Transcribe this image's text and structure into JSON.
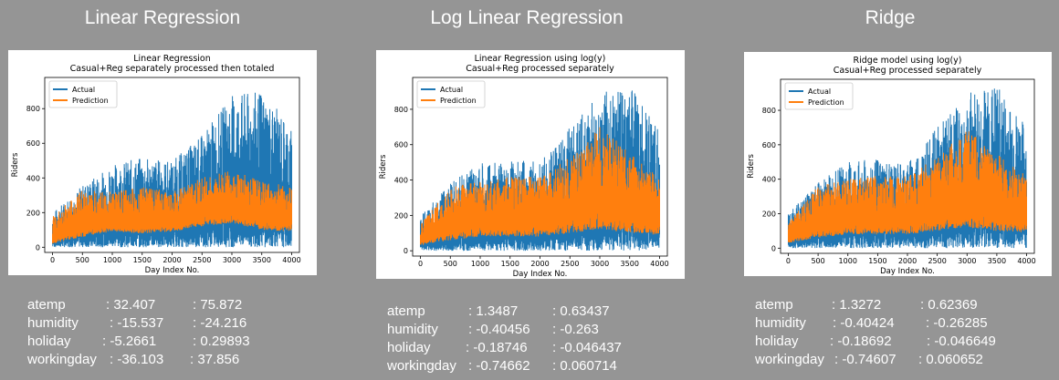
{
  "headings": [
    "Linear Regression",
    "Log Linear Regression",
    "Ridge"
  ],
  "chart_data": [
    {
      "type": "line",
      "title": "Linear Regression\nCasual+Reg separately processed then totaled",
      "xlabel": "Day Index No.",
      "ylabel": "Riders",
      "xlim": [
        -130,
        4130
      ],
      "ylim": [
        -30,
        980
      ],
      "xticks": [
        0,
        500,
        1000,
        1500,
        2000,
        2500,
        3000,
        3500,
        4000
      ],
      "yticks": [
        0,
        200,
        400,
        600,
        800
      ],
      "legend_position": "upper-left",
      "series": [
        {
          "name": "Actual",
          "color": "#1f77b4",
          "x": [
            0,
            500,
            1000,
            1500,
            2000,
            2500,
            3000,
            3500,
            4000
          ],
          "upper": [
            200,
            360,
            480,
            520,
            500,
            650,
            880,
            900,
            700
          ],
          "lower": [
            0,
            0,
            0,
            0,
            0,
            0,
            0,
            0,
            0
          ]
        },
        {
          "name": "Prediction",
          "color": "#ff7f0e",
          "x": [
            0,
            500,
            1000,
            1500,
            2000,
            2500,
            3000,
            3500,
            4000
          ],
          "upper": [
            180,
            330,
            320,
            350,
            320,
            400,
            450,
            380,
            350
          ],
          "lower": [
            20,
            60,
            90,
            80,
            90,
            120,
            140,
            100,
            90
          ]
        }
      ]
    },
    {
      "type": "line",
      "title": "Linear Regression using log(y)\nCasual+Reg processed separately",
      "xlabel": "Day Index No.",
      "ylabel": "Riders",
      "xlim": [
        -130,
        4130
      ],
      "ylim": [
        -30,
        980
      ],
      "xticks": [
        0,
        500,
        1000,
        1500,
        2000,
        2500,
        3000,
        3500,
        4000
      ],
      "yticks": [
        0,
        200,
        400,
        600,
        800
      ],
      "legend_position": "upper-left",
      "series": [
        {
          "name": "Actual",
          "color": "#1f77b4",
          "x": [
            0,
            500,
            1000,
            1500,
            2000,
            2500,
            3000,
            3500,
            4000
          ],
          "upper": [
            200,
            380,
            500,
            520,
            500,
            700,
            900,
            950,
            700
          ],
          "lower": [
            0,
            0,
            0,
            0,
            0,
            0,
            0,
            0,
            0
          ]
        },
        {
          "name": "Prediction",
          "color": "#ff7f0e",
          "x": [
            0,
            500,
            1000,
            1500,
            2000,
            2500,
            3000,
            3500,
            4000
          ],
          "upper": [
            150,
            360,
            400,
            420,
            420,
            530,
            700,
            560,
            420
          ],
          "lower": [
            30,
            60,
            80,
            80,
            80,
            100,
            120,
            100,
            90
          ]
        }
      ]
    },
    {
      "type": "line",
      "title": "Ridge model using log(y)\nCasual+Reg processed separately",
      "xlabel": "Day Index No.",
      "ylabel": "Riders",
      "xlim": [
        -130,
        4130
      ],
      "ylim": [
        -30,
        980
      ],
      "xticks": [
        0,
        500,
        1000,
        1500,
        2000,
        2500,
        3000,
        3500,
        4000
      ],
      "yticks": [
        0,
        200,
        400,
        600,
        800
      ],
      "legend_position": "upper-left",
      "series": [
        {
          "name": "Actual",
          "color": "#1f77b4",
          "x": [
            0,
            500,
            1000,
            1500,
            2000,
            2500,
            3000,
            3500,
            4000
          ],
          "upper": [
            200,
            380,
            500,
            520,
            500,
            700,
            900,
            950,
            700
          ],
          "lower": [
            0,
            0,
            0,
            0,
            0,
            0,
            0,
            0,
            0
          ]
        },
        {
          "name": "Prediction",
          "color": "#ff7f0e",
          "x": [
            0,
            500,
            1000,
            1500,
            2000,
            2500,
            3000,
            3500,
            4000
          ],
          "upper": [
            150,
            360,
            400,
            420,
            420,
            530,
            690,
            550,
            420
          ],
          "lower": [
            30,
            60,
            80,
            80,
            80,
            100,
            120,
            100,
            90
          ]
        }
      ]
    }
  ],
  "coefficients": [
    [
      {
        "name": "atemp",
        "a": ": 32.407",
        "b": ": 75.872"
      },
      {
        "name": "humidity",
        "a": ": -15.537",
        "b": ": -24.216"
      },
      {
        "name": "holiday",
        "a": ": -5.2661",
        "b": ": 0.29893"
      },
      {
        "name": "workingday",
        "a": ": -36.103",
        "b": ": 37.856"
      }
    ],
    [
      {
        "name": "atemp",
        "a": ": 1.3487",
        "b": ": 0.63437"
      },
      {
        "name": "humidity",
        "a": ": -0.40456",
        "b": ": -0.263"
      },
      {
        "name": "holiday",
        "a": ": -0.18746",
        "b": ": -0.046437"
      },
      {
        "name": "workingday",
        "a": ": -0.74662",
        "b": ": 0.060714"
      }
    ],
    [
      {
        "name": "atemp",
        "a": ": 1.3272",
        "b": ": 0.62369"
      },
      {
        "name": "humidity",
        "a": ": -0.40424",
        "b": ": -0.26285"
      },
      {
        "name": "holiday",
        "a": ": -0.18692",
        "b": ": -0.046649"
      },
      {
        "name": "workingday",
        "a": ": -0.74607",
        "b": ": 0.060652"
      }
    ]
  ]
}
